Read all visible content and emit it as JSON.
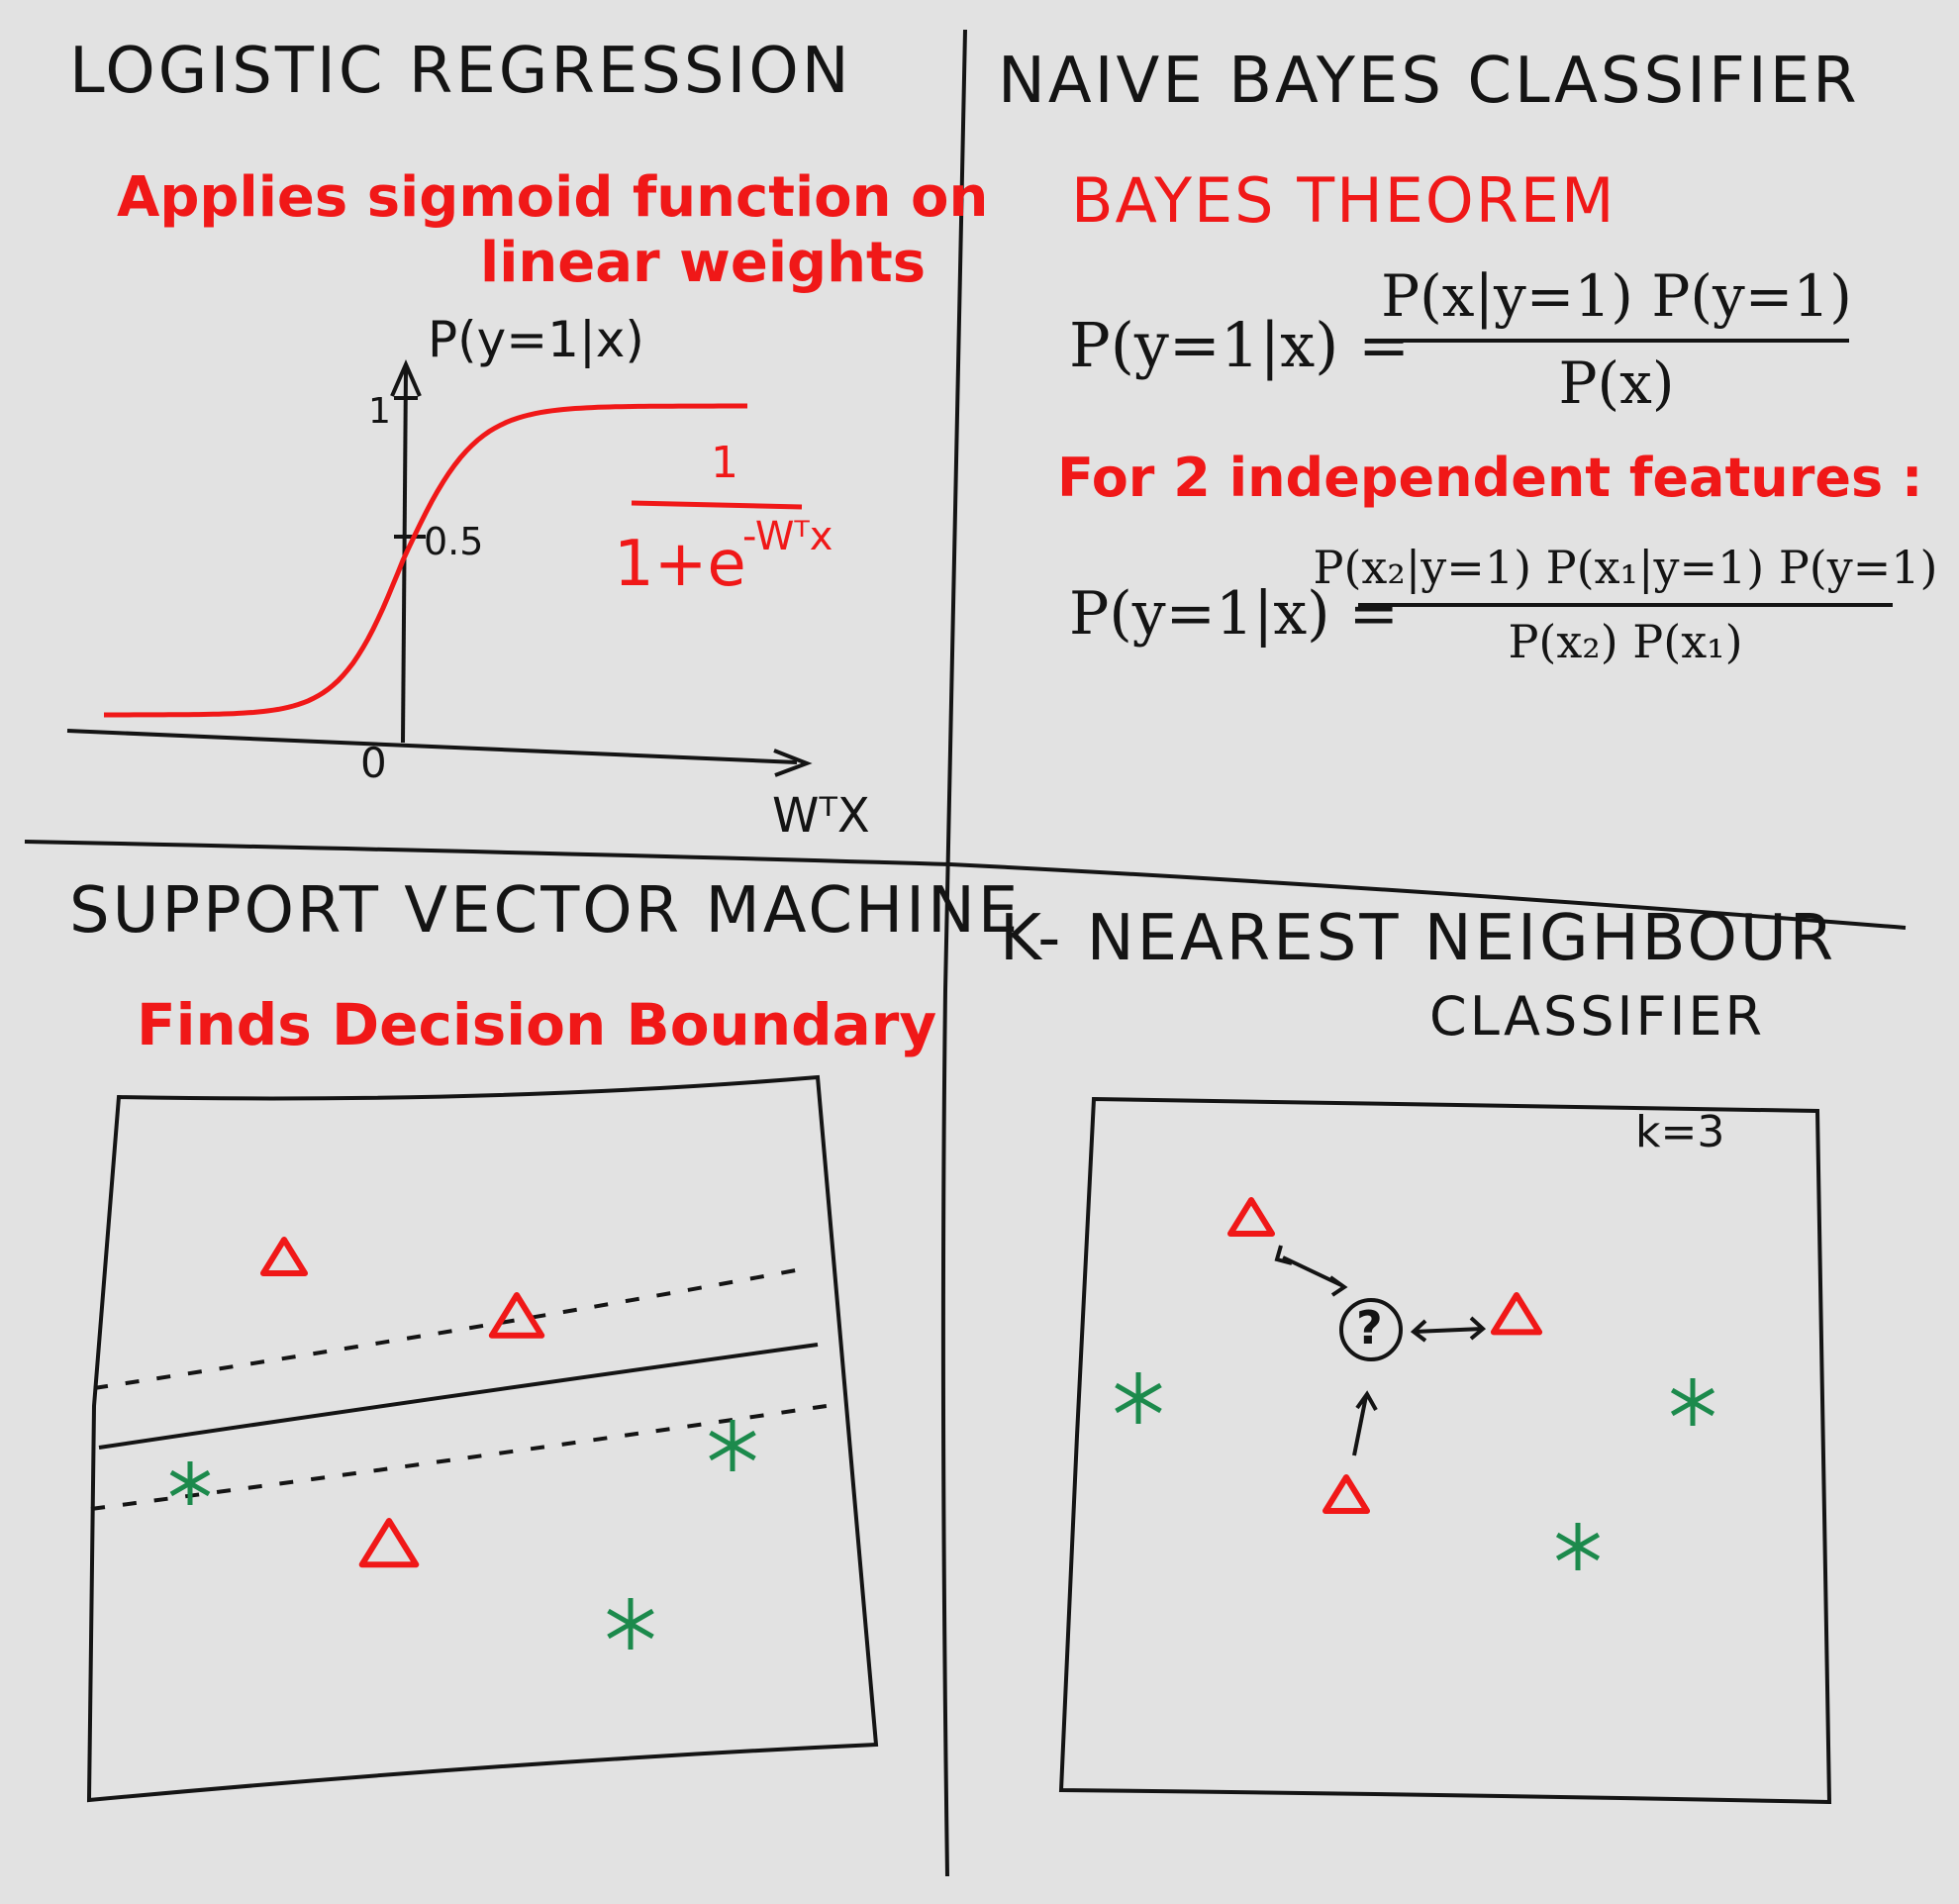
{
  "logistic": {
    "title": "LOGISTIC REGRESSION",
    "subtitle_line1": "Applies sigmoid function on",
    "subtitle_line2": "linear weights",
    "y_axis_label": "P(y=1|x)",
    "tick_1": "1",
    "tick_half": "0.5",
    "tick_0": "0",
    "x_axis_label": "WᵀX",
    "formula_numerator": "1",
    "formula_denominator_base": "1+e",
    "formula_exponent": "-Wᵀx",
    "curve_color": "#f01818",
    "plot": {
      "x_range": [
        -6,
        6
      ],
      "y_range": [
        0,
        1
      ]
    }
  },
  "bayes": {
    "title": "NAIVE BAYES CLASSIFIER",
    "subtitle": "BAYES THEOREM",
    "eq1_lhs": "P(y=1|x) =",
    "eq1_num": "P(x|y=1) P(y=1)",
    "eq1_den": "P(x)",
    "note": "For 2 independent features :",
    "eq2_lhs": "P(y=1|x) =",
    "eq2_num": "P(x₂|y=1) P(x₁|y=1) P(y=1)",
    "eq2_den": "P(x₂) P(x₁)"
  },
  "svm": {
    "title": "SUPPORT VECTOR MACHINE",
    "subtitle": "Finds Decision Boundary"
  },
  "knn": {
    "title_line1": "K- NEAREST NEIGHBOUR",
    "title_line2": "CLASSIFIER",
    "k_label": "k=3",
    "query_label": "?"
  },
  "colors": {
    "ink": "#141414",
    "red_marker": "#f01818",
    "green_marker": "#1c8a4c",
    "board": "#e2e2e2"
  }
}
